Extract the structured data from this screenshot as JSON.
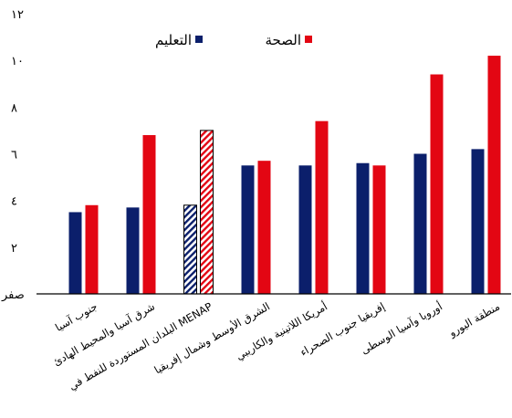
{
  "chart_data": {
    "type": "bar",
    "categories": [
      "جنوب آسيا",
      "شرق آسيا والمحيط الهادئ",
      "البلدان المستوردة للنفط في MENAP",
      "الشرق الأوسط وشمال إفريقيا",
      "أمريكا اللاتينية والكاريبي",
      "إفريقيا جنوب الصحراء",
      "أوروبا وآسيا الوسطى",
      "منطقة اليورو"
    ],
    "series": [
      {
        "name": "التعليم",
        "color": "#0b1f6b",
        "values": [
          3.5,
          3.7,
          3.8,
          5.5,
          5.5,
          5.6,
          6.0,
          6.2
        ]
      },
      {
        "name": "الصحة",
        "color": "#e30613",
        "values": [
          3.8,
          6.8,
          7.0,
          5.7,
          7.4,
          5.5,
          9.4,
          10.2
        ]
      }
    ],
    "hatched_category_index": 2,
    "yticks": [
      {
        "value": 0,
        "label": "صفر"
      },
      {
        "value": 2,
        "label": "٢"
      },
      {
        "value": 4,
        "label": "٤"
      },
      {
        "value": 6,
        "label": "٦"
      },
      {
        "value": 8,
        "label": "٨"
      },
      {
        "value": 10,
        "label": "١٠"
      },
      {
        "value": 12,
        "label": "١٢"
      }
    ],
    "ylim": [
      0,
      12
    ],
    "grid": false,
    "legend_position": "top"
  }
}
